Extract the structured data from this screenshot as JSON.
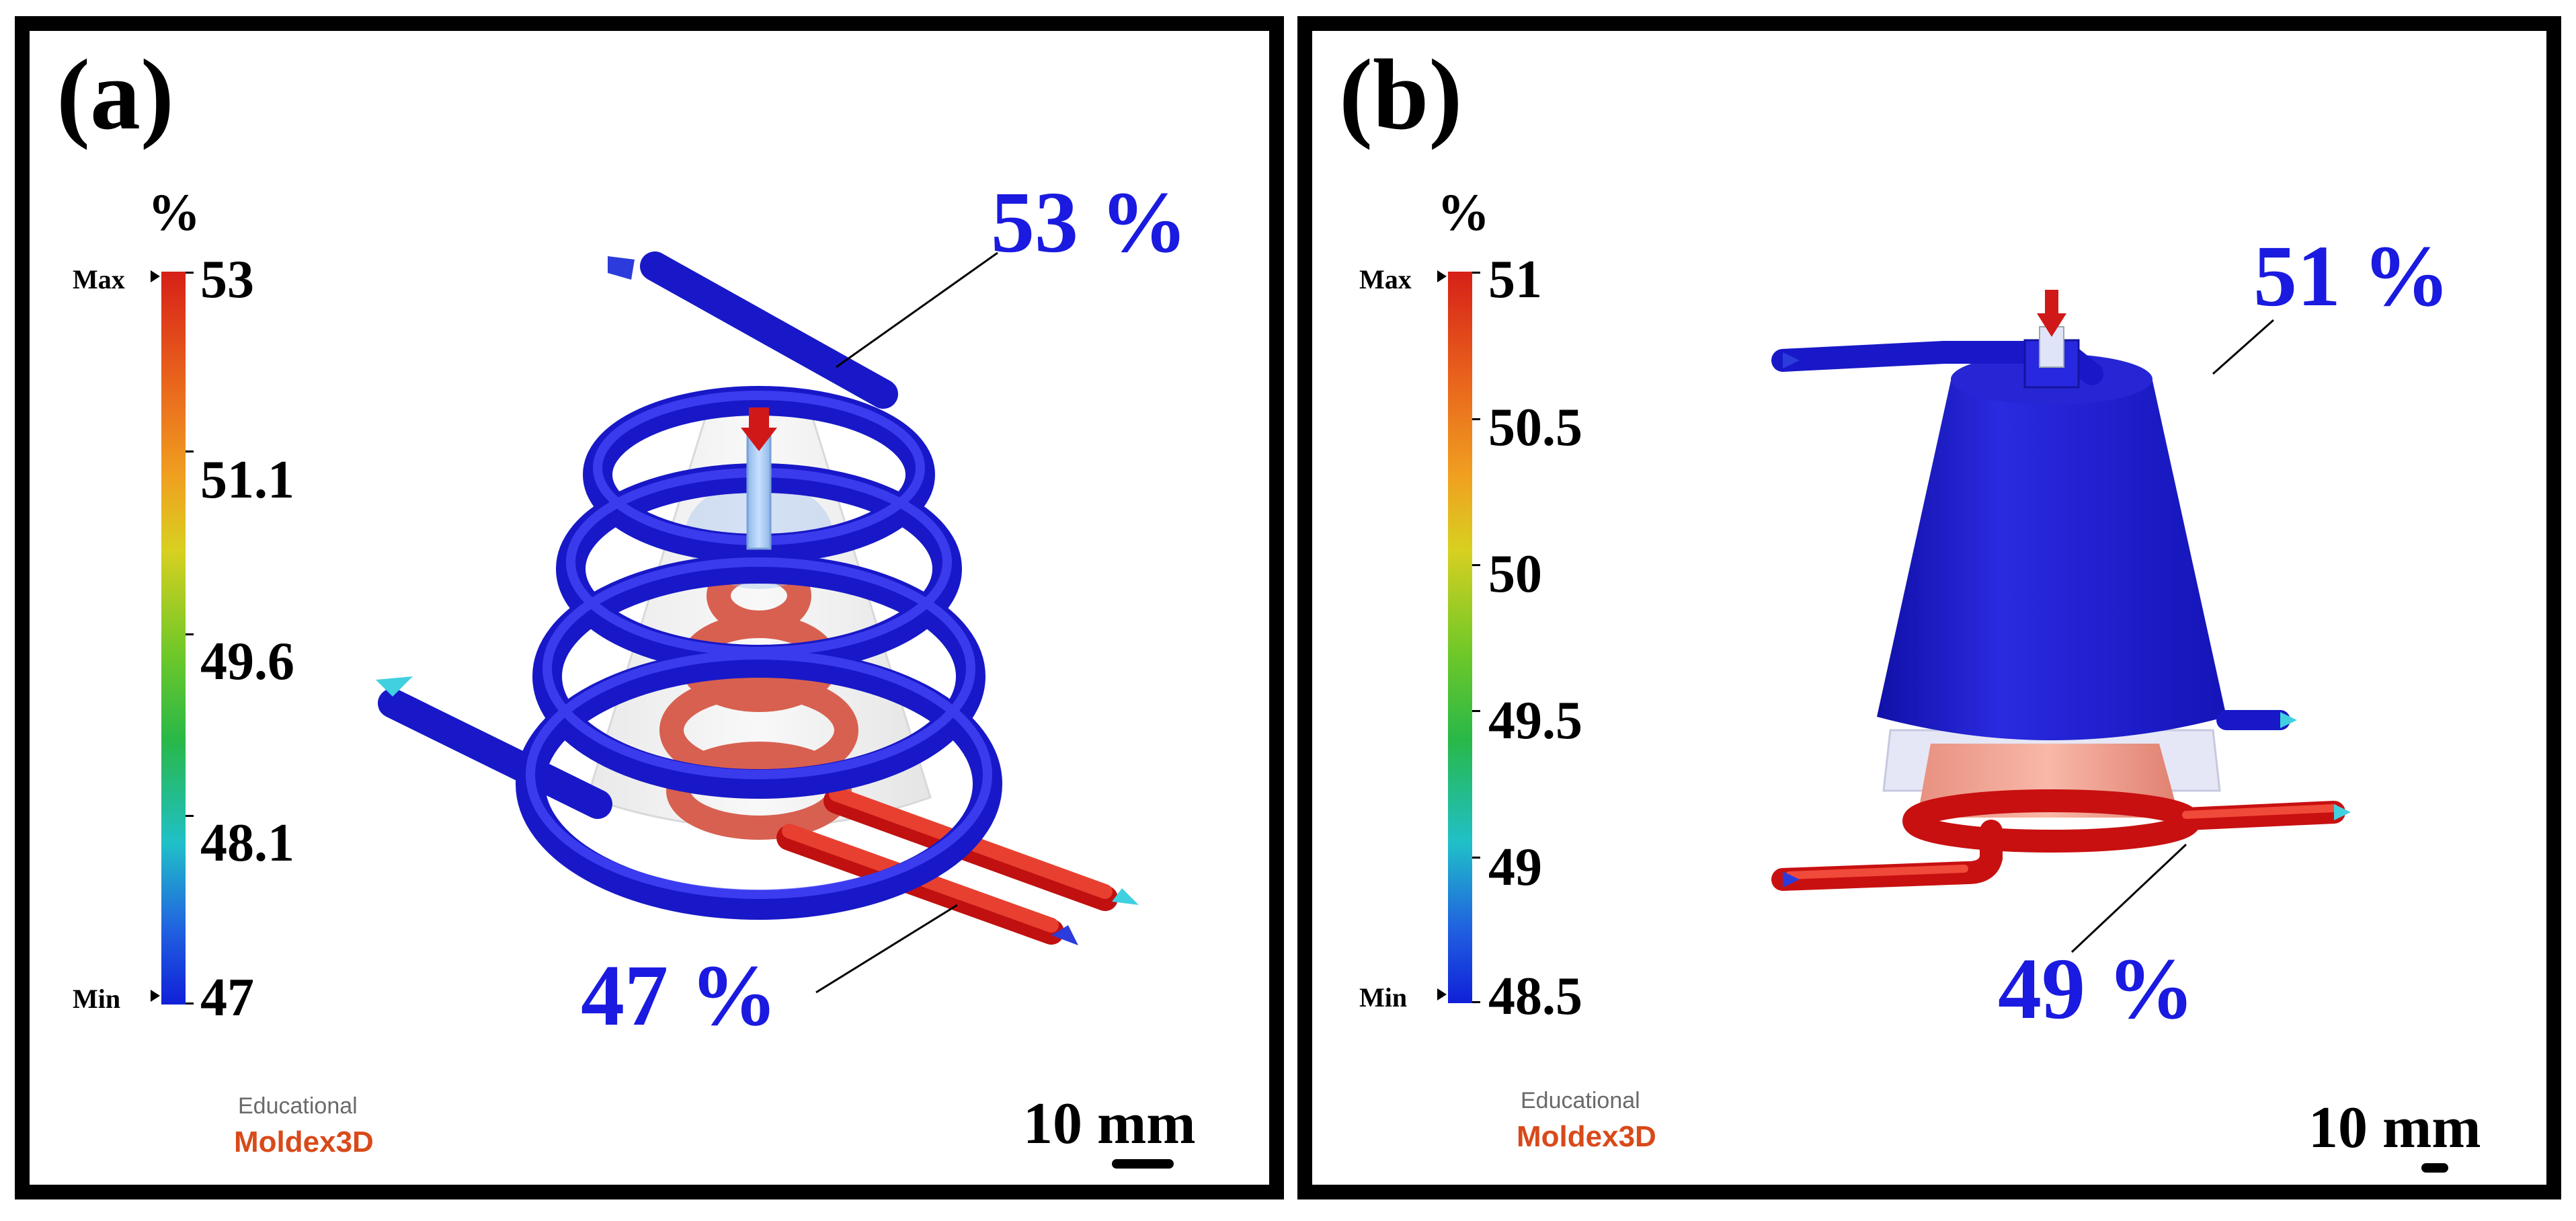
{
  "panels": [
    {
      "label": "(a)",
      "unit": "%",
      "legend": {
        "max_label": "Max",
        "min_label": "Min",
        "ticks": [
          "53",
          "51.1",
          "49.6",
          "48.1",
          "47"
        ]
      },
      "annotations": {
        "high": "53 %",
        "low": "47 %"
      },
      "watermark": {
        "line1": "Educational",
        "line2": "Moldex3D"
      },
      "scale_text": "10 mm"
    },
    {
      "label": "(b)",
      "unit": "%",
      "legend": {
        "max_label": "Max",
        "min_label": "Min",
        "ticks": [
          "51",
          "50.5",
          "50",
          "49.5",
          "49",
          "48.5"
        ]
      },
      "annotations": {
        "high": "51 %",
        "low": "49 %"
      },
      "watermark": {
        "line1": "Educational",
        "line2": "Moldex3D"
      },
      "scale_text": "10 mm"
    }
  ],
  "colors": {
    "cold": "#1a1ae0",
    "hot": "#e03020",
    "annotation": "#1a1ae0",
    "brand": "#d84a1a"
  }
}
